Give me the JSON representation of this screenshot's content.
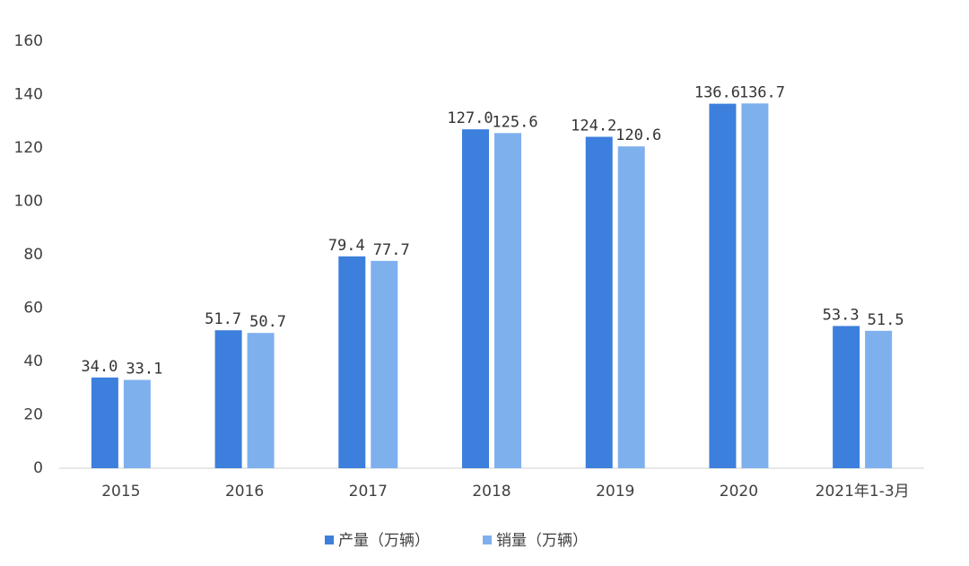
{
  "chart_data": {
    "type": "bar",
    "categories": [
      "2015",
      "2016",
      "2017",
      "2018",
      "2019",
      "2020",
      "2021年1-3月"
    ],
    "series": [
      {
        "name": "产量（万辆）",
        "color": "#3d7fdc",
        "values": [
          34.0,
          51.7,
          79.4,
          127.0,
          124.2,
          136.6,
          53.3
        ],
        "value_labels": [
          "34.0",
          "51.7",
          "79.4",
          "127.0",
          "124.2",
          "136.6",
          "53.3"
        ]
      },
      {
        "name": "销量（万辆）",
        "color": "#7fb0ee",
        "values": [
          33.1,
          50.7,
          77.7,
          125.6,
          120.6,
          136.7,
          51.5
        ],
        "value_labels": [
          "33.1",
          "50.7",
          "77.7",
          "125.6",
          "120.6",
          "136.7",
          "51.5"
        ]
      }
    ],
    "ylim": [
      0,
      160
    ],
    "yticks": [
      0,
      20,
      40,
      60,
      80,
      100,
      120,
      140,
      160
    ],
    "grid": false,
    "legend": "bottom"
  }
}
